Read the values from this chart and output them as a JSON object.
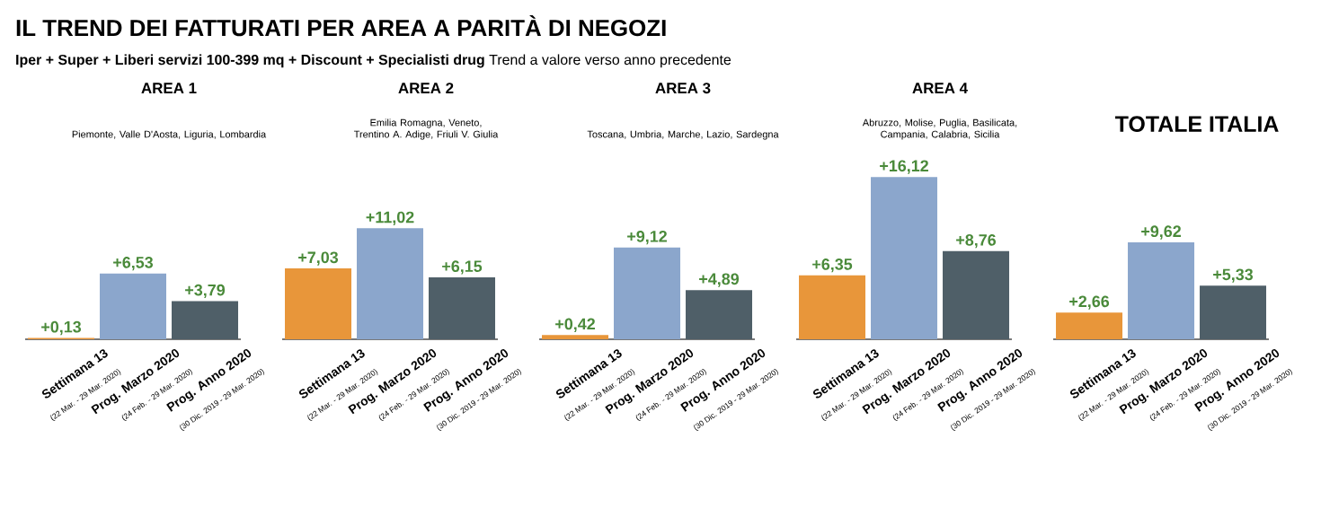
{
  "chart_data": [
    {
      "type": "other",
      "title": "IL TREND DEI FATTURATI PER AREA A PARITÀ DI NEGOZI",
      "subtitle": "**Iper + Super + Liberi servizi 100-399 mq + Discount + Specialisti drug** Trend a valore verso anno precedente"
    },
    {
      "type": "bar",
      "title": "AREA 1",
      "subtitle": "Piemonte, Valle D'Aosta, Liguria, Lombardia",
      "categories": [
        "Settimana 13",
        "Prog. Marzo 2020",
        "Prog. Anno 2020"
      ],
      "values": [
        0.13,
        6.53,
        3.79
      ],
      "value_labels": [
        "+0,13",
        "+6,53",
        "+3,79"
      ],
      "colors": [
        "#e8963a",
        "#8ba6cc",
        "#4f5f68"
      ],
      "annotations": [
        "(22 Mar. - 29 Mar. 2020)",
        "(24 Feb. - 29 Mar. 2020)",
        "(30 Dic. 2019 - 29 Mar. 2020)"
      ]
    },
    {
      "type": "bar",
      "title": "AREA 2",
      "subtitle": "Emilia Romagna, Veneto, Trentino A. Adige, Friuli V. Giulia",
      "categories": [
        "Settimana 13",
        "Prog. Marzo 2020",
        "Prog. Anno 2020"
      ],
      "values": [
        7.03,
        11.02,
        6.15
      ],
      "value_labels": [
        "+7,03",
        "+11,02",
        "+6,15"
      ],
      "colors": [
        "#e8963a",
        "#8ba6cc",
        "#4f5f68"
      ],
      "annotations": [
        "(22 Mar. - 29 Mar. 2020)",
        "(24 Feb. - 29 Mar. 2020)",
        "(30 Dic. 2019 - 29 Mar. 2020)"
      ]
    },
    {
      "type": "bar",
      "title": "AREA 3",
      "subtitle": "Toscana, Umbria, Marche, Lazio, Sardegna",
      "categories": [
        "Settimana 13",
        "Prog. Marzo 2020",
        "Prog. Anno 2020"
      ],
      "values": [
        0.42,
        9.12,
        4.89
      ],
      "value_labels": [
        "+0,42",
        "+9,12",
        "+4,89"
      ],
      "colors": [
        "#e8963a",
        "#8ba6cc",
        "#4f5f68"
      ],
      "annotations": [
        "(22 Mar. - 29 Mar. 2020)",
        "(24 Feb. - 29 Mar. 2020)",
        "(30 Dic. 2019 - 29 Mar. 2020)"
      ]
    },
    {
      "type": "bar",
      "title": "AREA 4",
      "subtitle": "Abruzzo, Molise, Puglia, Basilicata, Campania, Calabria, Sicilia",
      "categories": [
        "Settimana 13",
        "Prog. Marzo 2020",
        "Prog. Anno 2020"
      ],
      "values": [
        6.35,
        16.12,
        8.76
      ],
      "value_labels": [
        "+6,35",
        "+16,12",
        "+8,76"
      ],
      "colors": [
        "#e8963a",
        "#8ba6cc",
        "#4f5f68"
      ],
      "annotations": [
        "(22 Mar. - 29 Mar. 2020)",
        "(24 Feb. - 29 Mar. 2020)",
        "(30 Dic. 2019 - 29 Mar. 2020)"
      ]
    },
    {
      "type": "bar",
      "title": "TOTALE ITALIA",
      "categories": [
        "Settimana 13",
        "Prog. Marzo 2020",
        "Prog. Anno 2020"
      ],
      "values": [
        2.66,
        9.62,
        5.33
      ],
      "value_labels": [
        "+2,66",
        "+9,62",
        "+5,33"
      ],
      "colors": [
        "#e8963a",
        "#8ba6cc",
        "#4f5f68"
      ],
      "annotations": [
        "(22 Mar. - 29 Mar. 2020)",
        "(24 Feb. - 29 Mar. 2020)",
        "(30 Dic. 2019 - 29 Mar. 2020)"
      ]
    }
  ]
}
